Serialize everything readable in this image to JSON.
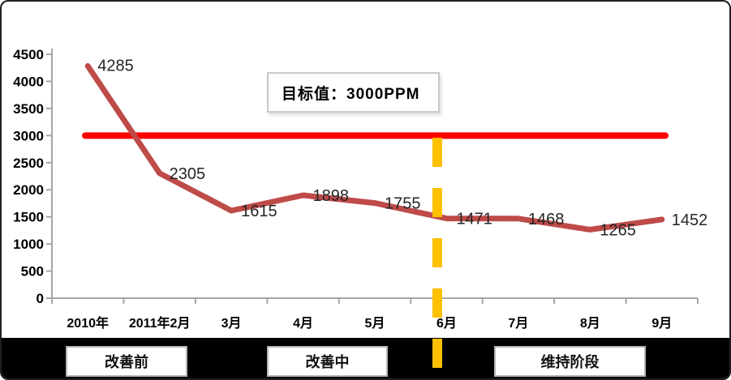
{
  "chart_data": {
    "type": "line",
    "categories": [
      "2010年",
      "2011年2月",
      "3月",
      "4月",
      "5月",
      "6月",
      "7月",
      "8月",
      "9月"
    ],
    "values": [
      4285,
      2305,
      1615,
      1898,
      1755,
      1471,
      1468,
      1265,
      1452
    ],
    "data_labels": [
      "4285",
      "2305",
      "1615",
      "1898",
      "1755",
      "1471",
      "1468",
      "1265",
      "1452"
    ],
    "y_ticks": [
      0,
      500,
      1000,
      1500,
      2000,
      2500,
      3000,
      3500,
      4000,
      4500
    ],
    "ylim": [
      0,
      4500
    ],
    "grid": false,
    "legend": "none",
    "line_color": "#be4b48",
    "target_line": {
      "value": 3000,
      "color": "#fe0000",
      "label": "目标值：3000PPM"
    },
    "divider_line": {
      "position": "between 5月 and 6月",
      "color": "#ffc000",
      "style": "dashed"
    }
  },
  "annotations": {
    "target_label": "目标值：3000PPM"
  },
  "phases": [
    {
      "label": "改善前"
    },
    {
      "label": "改善中"
    },
    {
      "label": "维持阶段"
    }
  ],
  "colors": {
    "series_line": "#be4b48",
    "target_line": "#fe0000",
    "divider": "#ffc000",
    "axis": "#a6a6a6",
    "strip_bg": "#000000"
  }
}
